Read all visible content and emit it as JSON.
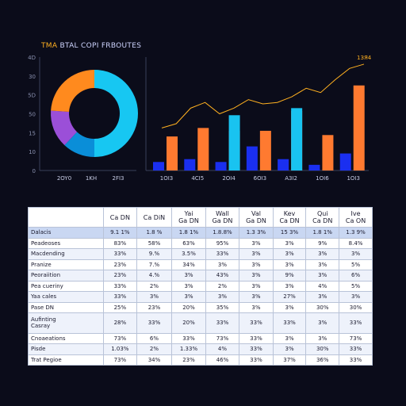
{
  "header": {
    "title_mark": "TMA",
    "title_text": "BTAL COPI FRBOUTES"
  },
  "chart_data": [
    {
      "type": "pie",
      "title": "",
      "slices": [
        {
          "value": 50,
          "color": "#17c7f2"
        },
        {
          "value": 12,
          "color": "#0a8ed8"
        },
        {
          "value": 14,
          "color": "#9b4fd8"
        },
        {
          "value": 24,
          "color": "#ff8a1e"
        }
      ],
      "yticks": [
        "4D",
        "30",
        "5D",
        "50",
        "15",
        "10",
        "0"
      ],
      "xticks": [
        "2OY0",
        "1KH",
        "2FI3"
      ]
    },
    {
      "type": "bar",
      "categories": [
        "1",
        "2",
        "3",
        "4",
        "5",
        "6",
        "7"
      ],
      "series": [
        {
          "values": [
            6,
            8,
            6,
            17,
            8,
            4,
            12
          ],
          "colors": "#1a2ff0"
        },
        {
          "values": [
            24,
            30,
            28,
            28,
            42,
            25,
            60
          ],
          "colors": "#ff7a30"
        },
        {
          "values": [
            0,
            0,
            39,
            0,
            44,
            0,
            0
          ],
          "colors": "#19c3f0"
        }
      ],
      "line": [
        30,
        33,
        44,
        48,
        40,
        44,
        50,
        47,
        48,
        52,
        58,
        55,
        64,
        72,
        75
      ],
      "line_color": "#ffb020",
      "ylim": [
        0,
        80
      ],
      "xticks": [
        "1OI3",
        "4CI5",
        "2OI4",
        "6OI3",
        "A3I2",
        "1OI6",
        "1OI3"
      ],
      "label": "1ЗЯ4"
    }
  ],
  "table": {
    "headers": [
      "",
      "Ca DN",
      "Ca DiN",
      "Yai\nGa DN",
      "Wall\nGa DN",
      "Val\nGa DN",
      "Kev\nCa DN",
      "Qui\nCa DN",
      "Ive\nCa ON"
    ],
    "rows": [
      [
        "Dalacis",
        "9.1 1%",
        "1.8 %",
        "1.8 1%",
        "1.8.8%",
        "1.3 3%",
        "15 3%",
        "1.8 1%",
        "1.3 9%"
      ],
      [
        "Peadeoses",
        "83%",
        "58%",
        "63%",
        "95%",
        "3%",
        "3%",
        "9%",
        "8.4%"
      ],
      [
        "Macdending",
        "33%",
        "9.%",
        "3.5%",
        "33%",
        "3%",
        "3%",
        "3%",
        "3%"
      ],
      [
        "Pranize",
        "23%",
        "7.%",
        "34%",
        "3%",
        "3%",
        "3%",
        "3%",
        "5%"
      ],
      [
        "Peoraiition",
        "23%",
        "4.%",
        "3%",
        "43%",
        "3%",
        "9%",
        "3%",
        "6%"
      ],
      [
        "Pea cueriny",
        "33%",
        "2%",
        "3%",
        "2%",
        "3%",
        "3%",
        "4%",
        "5%"
      ],
      [
        "Yaa cales",
        "33%",
        "3%",
        "3%",
        "3%",
        "3%",
        "27%",
        "3%",
        "3%"
      ],
      [
        "Pase DN",
        "25%",
        "23%",
        "20%",
        "35%",
        "3%",
        "3%",
        "30%",
        "30%"
      ],
      [
        "Aufinting\nCasray",
        "28%",
        "33%",
        "20%",
        "33%",
        "33%",
        "33%",
        "3%",
        "33%"
      ],
      [
        "Cnoaeations",
        "73%",
        "6%",
        "33%",
        "73%",
        "33%",
        "3%",
        "3%",
        "73%"
      ],
      [
        "Pisde",
        "1.03%",
        "2%",
        "1.33%",
        "4%",
        "33%",
        "3%",
        "30%",
        "33%"
      ],
      [
        "Trat Pegioe",
        "73%",
        "34%",
        "23%",
        "46%",
        "33%",
        "37%",
        "36%",
        "33%"
      ]
    ]
  }
}
